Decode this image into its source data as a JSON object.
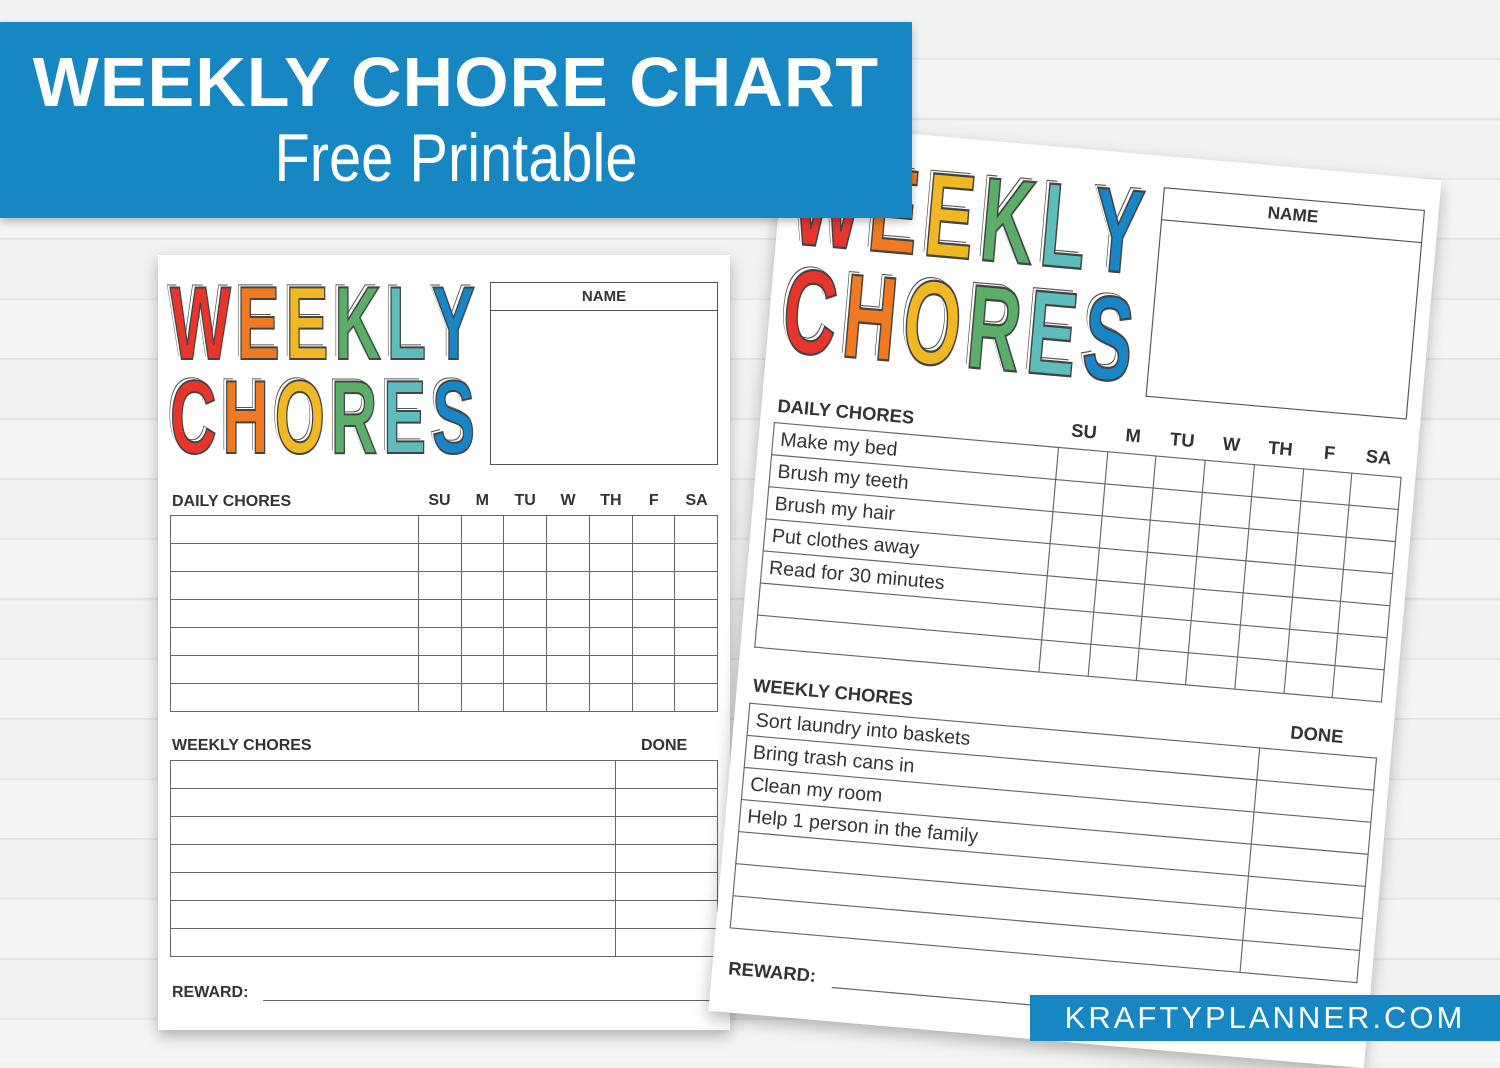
{
  "banner": {
    "title": "WEEKLY CHORE CHART",
    "subtitle": "Free Printable"
  },
  "footer": {
    "site": "KRAFTYPLANNER.COM"
  },
  "colors": {
    "brand_blue": "#1787c3",
    "letters": [
      "#e8352b",
      "#f07a22",
      "#f2b824",
      "#5aae68",
      "#5dbcbc",
      "#1786c6"
    ]
  },
  "logo": {
    "line1": "WEEKLY",
    "line2": "CHORES"
  },
  "labels": {
    "name": "NAME",
    "daily": "DAILY CHORES",
    "weekly": "WEEKLY CHORES",
    "done": "DONE",
    "reward": "REWARD:"
  },
  "days": [
    "SU",
    "M",
    "TU",
    "W",
    "TH",
    "F",
    "SA"
  ],
  "sheets": [
    {
      "daily": [
        "",
        "",
        "",
        "",
        "",
        "",
        ""
      ],
      "weekly": [
        "",
        "",
        "",
        "",
        "",
        "",
        ""
      ]
    },
    {
      "daily": [
        "Make my bed",
        "Brush my teeth",
        "Brush my hair",
        "Put clothes away",
        "Read for 30 minutes",
        "",
        ""
      ],
      "weekly": [
        "Sort laundry into baskets",
        "Bring trash cans in",
        "Clean my room",
        "Help 1 person in the family",
        "",
        "",
        ""
      ]
    }
  ]
}
